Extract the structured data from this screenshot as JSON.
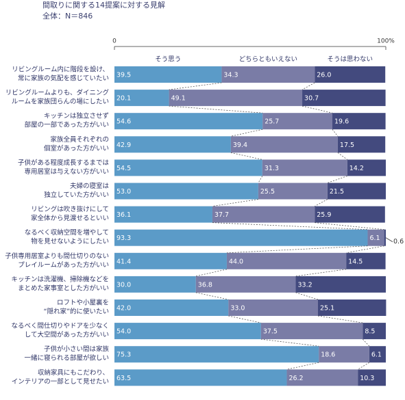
{
  "chart_data": {
    "type": "stacked-bar-horizontal",
    "title": "間取りに関する14提案に対する見解",
    "subtitle": "全体：N＝846",
    "categories": [
      [
        "リビングルーム内に階段を設け、",
        "常に家族の気配を感じていたい"
      ],
      [
        "リビングルームよりも、ダイニング",
        "ルームを家族団らんの場にしたい"
      ],
      [
        "キッチンは独立させず",
        "部屋の一部であった方がいい"
      ],
      [
        "家族全員それぞれの",
        "個室があった方がいい"
      ],
      [
        "子供がある程度成長するまでは",
        "専用居室は与えない方がいい"
      ],
      [
        "夫婦の寝室は",
        "独立していた方がいい"
      ],
      [
        "リビングは吹き抜けにして",
        "家全体から見渡せるといい"
      ],
      [
        "なるべく収納空間を増やして",
        "物を見せないようにしたい"
      ],
      [
        "子供専用居室よりも間仕切りのない",
        "プレイルームがあった方がいい"
      ],
      [
        "キッチンは洗濯機、掃除機などを",
        "まとめた家事室とした方がいい"
      ],
      [
        "ロフトや小屋裏を",
        "“隠れ家”的に使いたい"
      ],
      [
        "なるべく間仕切りやドアを少なく",
        "して大空間があった方がいい"
      ],
      [
        "子供が小さい間は家族",
        "一緒に寝られる部屋が欲しい"
      ],
      [
        "収納家具にもこだわり、",
        "インテリアの一部として見せたい"
      ]
    ],
    "series": [
      {
        "name": "そう思う",
        "color": "#5b9bc8",
        "values": [
          39.5,
          20.1,
          54.6,
          42.9,
          54.5,
          53.0,
          36.1,
          93.3,
          41.4,
          30.0,
          42.0,
          54.0,
          75.3,
          63.5
        ],
        "value_labels": [
          "39.5",
          "20.1",
          "54.6",
          "42.9",
          "54.5",
          "53.0",
          "36.1",
          "93.3",
          "41.4",
          "30.0",
          "42.0",
          "54.0",
          "75.3",
          "63.5"
        ]
      },
      {
        "name": "どちらともいえない",
        "color": "#7a7ca6",
        "values": [
          34.3,
          49.1,
          25.7,
          39.4,
          31.3,
          25.5,
          37.7,
          6.1,
          44.0,
          36.8,
          33.0,
          37.5,
          18.6,
          26.2
        ],
        "value_labels": [
          "34.3",
          "49.1",
          "25.7",
          "39.4",
          "31.3",
          "25.5",
          "37.7",
          "6.1",
          "44.0",
          "36.8",
          "33.0",
          "37.5",
          "18.6",
          "26.2"
        ]
      },
      {
        "name": "そうは思わない",
        "color": "#434a7e",
        "values": [
          26.0,
          30.7,
          19.6,
          17.5,
          14.2,
          21.5,
          25.9,
          0.6,
          14.5,
          33.2,
          25.1,
          8.5,
          6.1,
          10.3
        ],
        "value_labels": [
          "26.0",
          "30.7",
          "19.6",
          "17.5",
          "14.2",
          "21.5",
          "25.9",
          "0.6",
          "14.5",
          "33.2",
          "25.1",
          "8.5",
          "6.1",
          "10.3"
        ]
      }
    ],
    "xlim": [
      0,
      100
    ],
    "xticks": [
      0,
      {
        "value": 100,
        "label": "100%"
      }
    ]
  }
}
